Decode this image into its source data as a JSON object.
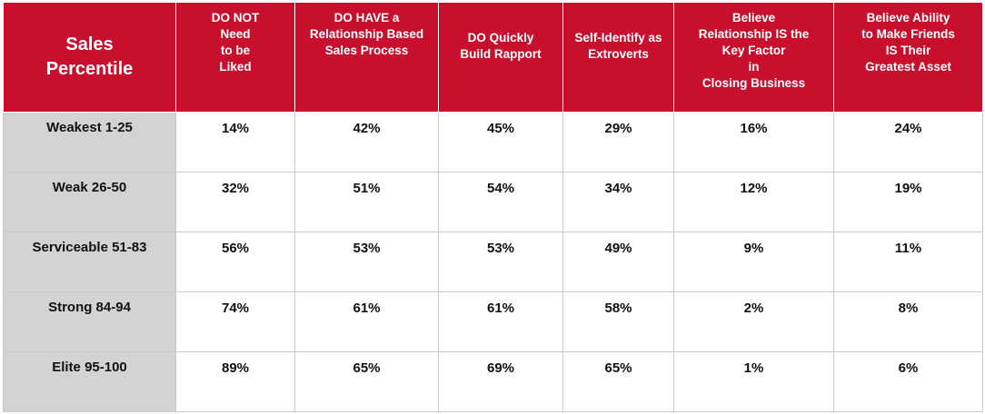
{
  "chart_data": {
    "type": "table",
    "header": {
      "corner": [
        "Sales",
        "Percentile"
      ],
      "columns": [
        [
          "DO NOT",
          "Need",
          "to be",
          "Liked"
        ],
        [
          "DO HAVE a",
          "Relationship Based",
          "Sales Process"
        ],
        [
          "DO Quickly",
          "Build Rapport"
        ],
        [
          "Self-Identify as",
          "Extroverts"
        ],
        [
          "Believe",
          "Relationship IS  the",
          "Key Factor",
          "in",
          "Closing Business"
        ],
        [
          "Believe Ability",
          "to Make Friends",
          "IS Their",
          "Greatest Asset"
        ]
      ]
    },
    "rows": [
      {
        "label": "Weakest 1-25",
        "values": [
          "14%",
          "42%",
          "45%",
          "29%",
          "16%",
          "24%"
        ]
      },
      {
        "label": "Weak 26-50",
        "values": [
          "32%",
          "51%",
          "54%",
          "34%",
          "12%",
          "19%"
        ]
      },
      {
        "label": "Serviceable 51-83",
        "values": [
          "56%",
          "53%",
          "53%",
          "49%",
          "9%",
          "11%"
        ]
      },
      {
        "label": "Strong 84-94",
        "values": [
          "74%",
          "61%",
          "61%",
          "58%",
          "2%",
          "8%"
        ]
      },
      {
        "label": "Elite 95-100",
        "values": [
          "89%",
          "65%",
          "69%",
          "65%",
          "1%",
          "6%"
        ]
      }
    ],
    "colors": {
      "header": "#c8102e",
      "row_label": "#d3d3d3"
    }
  }
}
